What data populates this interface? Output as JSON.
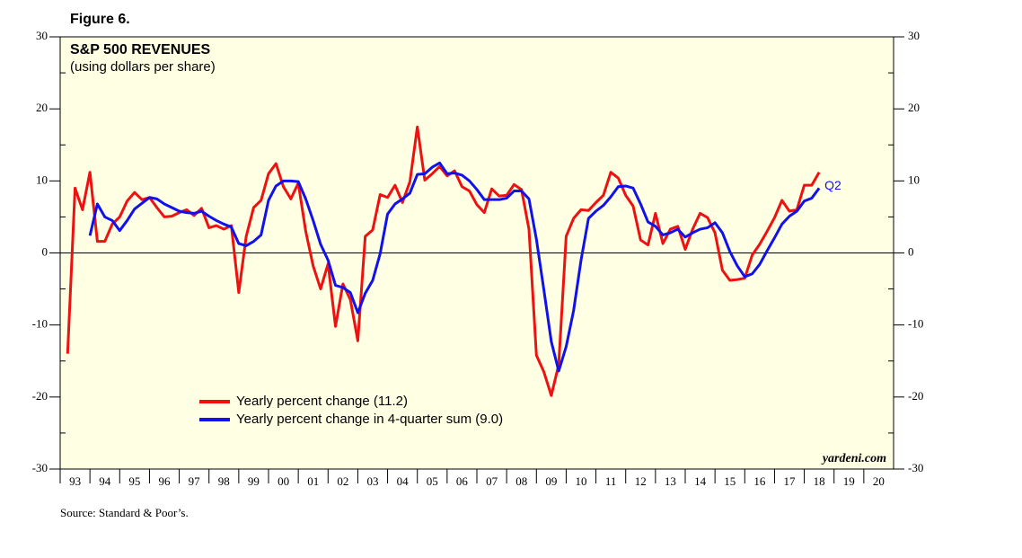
{
  "chart_data": {
    "type": "line",
    "figure_label": "Figure 6.",
    "title": "S&P 500 REVENUES",
    "subtitle": "(using dollars per share)",
    "annotation": "Q2",
    "watermark": "yardeni.com",
    "source": "Source: Standard & Poor’s.",
    "xlim": [
      1993,
      2021
    ],
    "xticks": [
      {
        "value": 1993,
        "label": "93"
      },
      {
        "value": 1994,
        "label": "94"
      },
      {
        "value": 1995,
        "label": "95"
      },
      {
        "value": 1996,
        "label": "96"
      },
      {
        "value": 1997,
        "label": "97"
      },
      {
        "value": 1998,
        "label": "98"
      },
      {
        "value": 1999,
        "label": "99"
      },
      {
        "value": 2000,
        "label": "00"
      },
      {
        "value": 2001,
        "label": "01"
      },
      {
        "value": 2002,
        "label": "02"
      },
      {
        "value": 2003,
        "label": "03"
      },
      {
        "value": 2004,
        "label": "04"
      },
      {
        "value": 2005,
        "label": "05"
      },
      {
        "value": 2006,
        "label": "06"
      },
      {
        "value": 2007,
        "label": "07"
      },
      {
        "value": 2008,
        "label": "08"
      },
      {
        "value": 2009,
        "label": "09"
      },
      {
        "value": 2010,
        "label": "10"
      },
      {
        "value": 2011,
        "label": "11"
      },
      {
        "value": 2012,
        "label": "12"
      },
      {
        "value": 2013,
        "label": "13"
      },
      {
        "value": 2014,
        "label": "14"
      },
      {
        "value": 2015,
        "label": "15"
      },
      {
        "value": 2016,
        "label": "16"
      },
      {
        "value": 2017,
        "label": "17"
      },
      {
        "value": 2018,
        "label": "18"
      },
      {
        "value": 2019,
        "label": "19"
      },
      {
        "value": 2020,
        "label": "20"
      }
    ],
    "ylim": [
      -30,
      30
    ],
    "yticks": [
      -30,
      -20,
      -10,
      0,
      10,
      20,
      30
    ],
    "y2lim": [
      -30,
      30
    ],
    "y2ticks": [
      -30,
      -20,
      -10,
      0,
      10,
      20,
      30
    ],
    "series": [
      {
        "name": "Yearly percent change (11.2)",
        "color": "#ee1111",
        "x": [
          1993.25,
          1993.5,
          1993.75,
          1994,
          1994.25,
          1994.5,
          1994.75,
          1995,
          1995.25,
          1995.5,
          1995.75,
          1996,
          1996.25,
          1996.5,
          1996.75,
          1997,
          1997.25,
          1997.5,
          1997.75,
          1998,
          1998.25,
          1998.5,
          1998.75,
          1999,
          1999.25,
          1999.5,
          1999.75,
          2000,
          2000.25,
          2000.5,
          2000.75,
          2001,
          2001.25,
          2001.5,
          2001.75,
          2002,
          2002.25,
          2002.5,
          2002.75,
          2003,
          2003.25,
          2003.5,
          2003.75,
          2004,
          2004.25,
          2004.5,
          2004.75,
          2005,
          2005.25,
          2005.5,
          2005.75,
          2006,
          2006.25,
          2006.5,
          2006.75,
          2007,
          2007.25,
          2007.5,
          2007.75,
          2008,
          2008.25,
          2008.5,
          2008.75,
          2009,
          2009.25,
          2009.5,
          2009.75,
          2010,
          2010.25,
          2010.5,
          2010.75,
          2011,
          2011.25,
          2011.5,
          2011.75,
          2012,
          2012.25,
          2012.5,
          2012.75,
          2013,
          2013.25,
          2013.5,
          2013.75,
          2014,
          2014.25,
          2014.5,
          2014.75,
          2015,
          2015.25,
          2015.5,
          2015.75,
          2016,
          2016.25,
          2016.5,
          2016.75,
          2017,
          2017.25,
          2017.5,
          2017.75,
          2018,
          2018.25,
          2018.5
        ],
        "values": [
          -14,
          9,
          6,
          11.2,
          1.6,
          1.6,
          4,
          5,
          7.2,
          8.4,
          7.4,
          7.7,
          6.3,
          5,
          5.1,
          5.6,
          6,
          5.2,
          6.2,
          3.5,
          3.8,
          3.3,
          3.8,
          -5.5,
          2.3,
          6.3,
          7.3,
          11,
          12.4,
          9.2,
          7.5,
          9.7,
          3,
          -1.8,
          -5,
          -1.5,
          -10.2,
          -4.3,
          -6.5,
          -12.2,
          2.3,
          3.2,
          8.1,
          7.7,
          9.4,
          7,
          9.9,
          17.5,
          10.1,
          11,
          12,
          10.7,
          11.4,
          9.2,
          8.6,
          6.7,
          5.6,
          8.9,
          7.9,
          8,
          9.5,
          8.8,
          3.3,
          -14.2,
          -16.5,
          -19.8,
          -15.5,
          2.3,
          4.8,
          6,
          5.9,
          7,
          8,
          11.2,
          10.4,
          8,
          6.5,
          1.8,
          1.1,
          5.5,
          1.3,
          3.3,
          3.7,
          0.5,
          3.3,
          5.5,
          4.9,
          2.8,
          -2.4,
          -3.8,
          -3.7,
          -3.5,
          -0.3,
          1.2,
          3,
          4.9,
          7.3,
          5.8,
          6,
          9.4,
          9.4,
          11.2
        ]
      },
      {
        "name": "Yearly percent change in 4-quarter sum (9.0)",
        "color": "#1111ee",
        "x": [
          1994,
          1994.25,
          1994.5,
          1994.75,
          1995,
          1995.25,
          1995.5,
          1995.75,
          1996,
          1996.25,
          1996.5,
          1996.75,
          1997,
          1997.25,
          1997.5,
          1997.75,
          1998,
          1998.25,
          1998.5,
          1998.75,
          1999,
          1999.25,
          1999.5,
          1999.75,
          2000,
          2000.25,
          2000.5,
          2000.75,
          2001,
          2001.25,
          2001.5,
          2001.75,
          2002,
          2002.25,
          2002.5,
          2002.75,
          2003,
          2003.25,
          2003.5,
          2003.75,
          2004,
          2004.25,
          2004.5,
          2004.75,
          2005,
          2005.25,
          2005.5,
          2005.75,
          2006,
          2006.25,
          2006.5,
          2006.75,
          2007,
          2007.25,
          2007.5,
          2007.75,
          2008,
          2008.25,
          2008.5,
          2008.75,
          2009,
          2009.25,
          2009.5,
          2009.75,
          2010,
          2010.25,
          2010.5,
          2010.75,
          2011,
          2011.25,
          2011.5,
          2011.75,
          2012,
          2012.25,
          2012.5,
          2012.75,
          2013,
          2013.25,
          2013.5,
          2013.75,
          2014,
          2014.25,
          2014.5,
          2014.75,
          2015,
          2015.25,
          2015.5,
          2015.75,
          2016,
          2016.25,
          2016.5,
          2016.75,
          2017,
          2017.25,
          2017.5,
          2017.75,
          2018,
          2018.25,
          2018.5
        ],
        "values": [
          2.4,
          6.8,
          5,
          4.5,
          3.1,
          4.5,
          6.1,
          6.9,
          7.7,
          7.5,
          6.8,
          6.3,
          5.8,
          5.6,
          5.5,
          5.8,
          5.1,
          4.5,
          4,
          3.6,
          1.3,
          1,
          1.6,
          2.5,
          7.3,
          9.3,
          10,
          10,
          9.9,
          7.5,
          4.5,
          1.2,
          -1,
          -4.5,
          -4.8,
          -5.5,
          -8.3,
          -5.6,
          -3.8,
          -0.1,
          5.4,
          6.8,
          7.5,
          8.3,
          10.9,
          11,
          11.9,
          12.5,
          11,
          11.1,
          10.8,
          10,
          8.8,
          7.4,
          7.4,
          7.4,
          7.6,
          8.6,
          8.6,
          7.5,
          1.9,
          -5.1,
          -12.3,
          -16.4,
          -13,
          -8,
          -1,
          4.8,
          5.8,
          6.6,
          7.8,
          9.2,
          9.3,
          9,
          6.8,
          4.3,
          3.7,
          2.5,
          2.8,
          3.3,
          2.2,
          2.8,
          3.3,
          3.5,
          4.2,
          2.8,
          0.2,
          -1.8,
          -3.3,
          -2.9,
          -1.6,
          0.3,
          2.1,
          4,
          5.1,
          5.8,
          7.2,
          7.6,
          9
        ]
      }
    ]
  }
}
